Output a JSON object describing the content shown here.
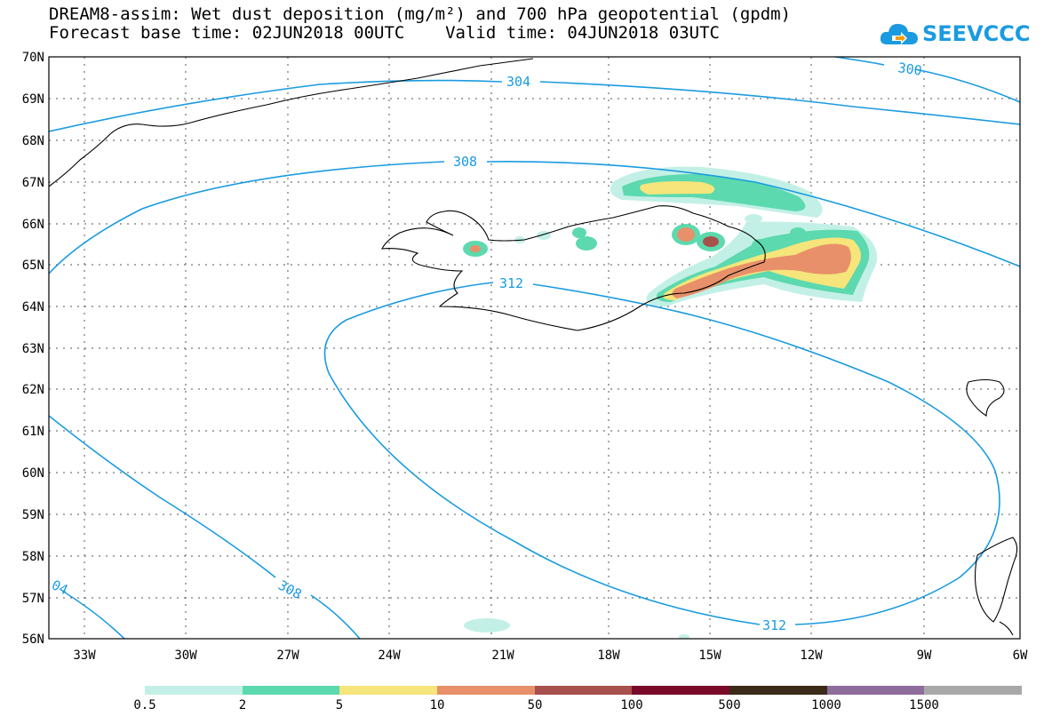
{
  "title": {
    "line1": "DREAM8-assim: Wet dust deposition (mg/m²) and 700 hPa geopotential (gpdm)",
    "line2": "Forecast base time: 02JUN2018 00UTC    Valid time: 04JUN2018 03UTC"
  },
  "logo": {
    "text": "SEEVCCC",
    "icon": "cloud-icon"
  },
  "map": {
    "lat_labels": [
      "70N",
      "69N",
      "68N",
      "67N",
      "66N",
      "65N",
      "64N",
      "63N",
      "62N",
      "61N",
      "60N",
      "59N",
      "58N",
      "57N",
      "56N"
    ],
    "lon_labels": [
      "33W",
      "30W",
      "27W",
      "24W",
      "21W",
      "18W",
      "15W",
      "12W",
      "9W",
      "6W"
    ],
    "contour_labels": [
      "300",
      "304",
      "308",
      "312",
      "312",
      "308",
      "04"
    ],
    "contour_color": "#1a9be0",
    "coastline_color": "#000000"
  },
  "legend": {
    "labels": [
      "0.5",
      "2",
      "5",
      "10",
      "50",
      "100",
      "500",
      "1000",
      "1500"
    ],
    "colors": [
      "#c3f0e6",
      "#5cd9ae",
      "#f5e57a",
      "#e8906a",
      "#a8504c",
      "#7a0a2a",
      "#3a2a18",
      "#8e6c9c",
      "#a8a8a8"
    ]
  }
}
